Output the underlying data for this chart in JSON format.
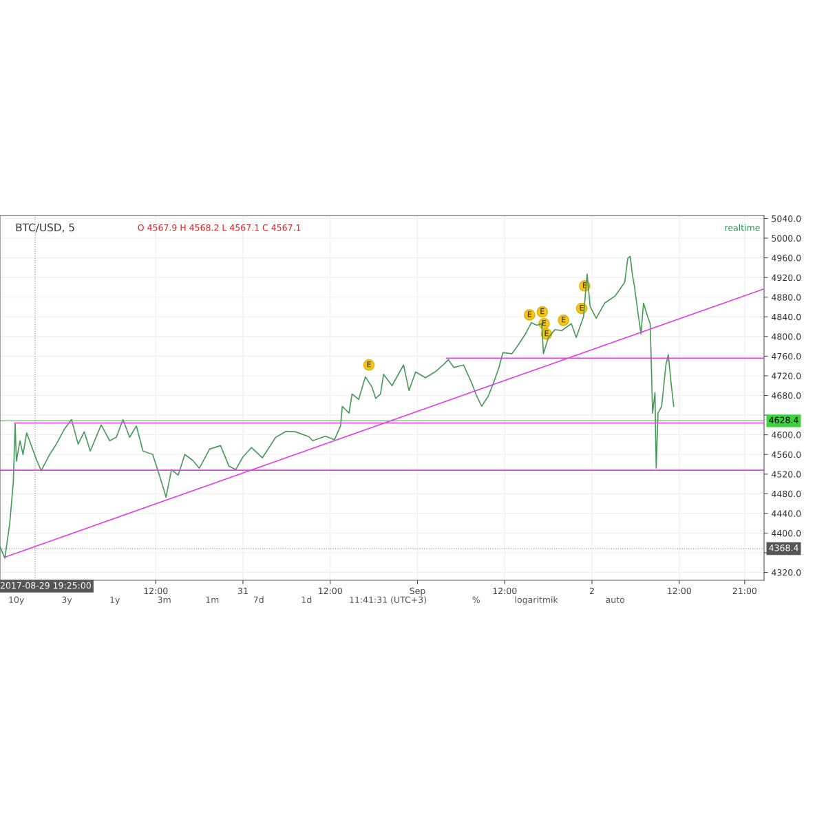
{
  "chart_data": {
    "type": "line",
    "title": "BTC/USD, 5",
    "subtitle": "O 4567.9 H 4568.2 L 4567.1 C 4567.1",
    "xlim": [
      "2017-08-29T14:35",
      "2017-09-02T23:40"
    ],
    "xticks": [
      {
        "value": "2017-08-30T12:00",
        "label": "12:00"
      },
      {
        "value": "2017-08-31",
        "label": "31"
      },
      {
        "value": "2017-08-31T12:00",
        "label": "12:00"
      },
      {
        "value": "2017-09-01",
        "label": "Sep"
      },
      {
        "value": "2017-09-01T12:00",
        "label": "12:00"
      },
      {
        "value": "2017-09-02",
        "label": "2"
      },
      {
        "value": "2017-09-02T12:00",
        "label": "12:00"
      },
      {
        "value": "2017-09-02T21:00",
        "label": "21:00"
      }
    ],
    "ylim": [
      4304,
      5046
    ],
    "yticks": [
      {
        "value": 4320,
        "label": "4320.0"
      },
      {
        "value": 4360,
        "label": null
      },
      {
        "value": 4400,
        "label": "4400.0"
      },
      {
        "value": 4440,
        "label": "4440.0"
      },
      {
        "value": 4480,
        "label": "4480.0"
      },
      {
        "value": 4520,
        "label": "4520.0"
      },
      {
        "value": 4560,
        "label": "4560.0"
      },
      {
        "value": 4600,
        "label": "4600.0"
      },
      {
        "value": 4640,
        "label": null
      },
      {
        "value": 4680,
        "label": "4680.0"
      },
      {
        "value": 4720,
        "label": "4720.0"
      },
      {
        "value": 4760,
        "label": "4760.0"
      },
      {
        "value": 4800,
        "label": "4800.0"
      },
      {
        "value": 4840,
        "label": "4840.0"
      },
      {
        "value": 4880,
        "label": "4880.0"
      },
      {
        "value": 4920,
        "label": "4920.0"
      },
      {
        "value": 4960,
        "label": "4960.0"
      },
      {
        "value": 5000,
        "label": "5000.0"
      },
      {
        "value": 5040,
        "label": "5040.0"
      }
    ],
    "grid": true,
    "line_style": "solid",
    "marker": "none",
    "series": [
      {
        "color": "#4a9a5a",
        "x": [
          "2017-08-29T14:35",
          "2017-08-29T15:15",
          "2017-08-29T15:55",
          "2017-08-29T16:25",
          "2017-08-29T16:40",
          "2017-08-29T16:50",
          "2017-08-29T17:20",
          "2017-08-29T17:45",
          "2017-08-29T18:15",
          "2017-08-29T19:35",
          "2017-08-29T20:15",
          "2017-08-29T21:25",
          "2017-08-29T22:20",
          "2017-08-29T23:25",
          "2017-08-30T00:25",
          "2017-08-30T01:20",
          "2017-08-30T02:10",
          "2017-08-30T03:00",
          "2017-08-30T04:30",
          "2017-08-30T05:40",
          "2017-08-30T06:35",
          "2017-08-30T07:30",
          "2017-08-30T08:25",
          "2017-08-30T09:20",
          "2017-08-30T10:15",
          "2017-08-30T11:35",
          "2017-08-30T12:30",
          "2017-08-30T13:15",
          "2017-08-30T13:25",
          "2017-08-30T14:10",
          "2017-08-30T15:05",
          "2017-08-30T16:00",
          "2017-08-30T17:05",
          "2017-08-30T18:00",
          "2017-08-30T19:25",
          "2017-08-30T20:55",
          "2017-08-30T22:05",
          "2017-08-30T23:00",
          "2017-08-31T00:00",
          "2017-08-31T01:10",
          "2017-08-31T02:40",
          "2017-08-31T04:30",
          "2017-08-31T05:55",
          "2017-08-31T07:15",
          "2017-08-31T09:05",
          "2017-08-31T09:35",
          "2017-08-31T11:20",
          "2017-08-31T12:35",
          "2017-08-31T13:25",
          "2017-08-31T13:40",
          "2017-08-31T14:35",
          "2017-08-31T15:00",
          "2017-08-31T15:55",
          "2017-08-31T16:50",
          "2017-08-31T17:45",
          "2017-08-31T18:15",
          "2017-08-31T18:55",
          "2017-08-31T19:20",
          "2017-08-31T20:30",
          "2017-08-31T22:05",
          "2017-08-31T22:50",
          "2017-08-31T23:45",
          "2017-09-01T01:05",
          "2017-09-01T02:25",
          "2017-09-01T03:40",
          "2017-09-01T04:15",
          "2017-09-01T05:00",
          "2017-09-01T06:20",
          "2017-09-01T07:30",
          "2017-09-01T08:05",
          "2017-09-01T08:50",
          "2017-09-01T09:45",
          "2017-09-01T10:25",
          "2017-09-01T11:10",
          "2017-09-01T11:45",
          "2017-09-01T13:00",
          "2017-09-01T13:55",
          "2017-09-01T14:50",
          "2017-09-01T15:40",
          "2017-09-01T16:25",
          "2017-09-01T17:05",
          "2017-09-01T17:20",
          "2017-09-01T18:00",
          "2017-09-01T18:55",
          "2017-09-01T19:50",
          "2017-09-01T21:10",
          "2017-09-01T21:50",
          "2017-09-01T22:50",
          "2017-09-01T23:20",
          "2017-09-01T23:45",
          "2017-09-02T00:35",
          "2017-09-02T01:45",
          "2017-09-02T03:10",
          "2017-09-02T04:30",
          "2017-09-02T04:55",
          "2017-09-02T05:15",
          "2017-09-02T05:35",
          "2017-09-02T05:50",
          "2017-09-02T06:20",
          "2017-09-02T06:45",
          "2017-09-02T07:05",
          "2017-09-02T07:40",
          "2017-09-02T08:00",
          "2017-09-02T08:10",
          "2017-09-02T08:20",
          "2017-09-02T08:40",
          "2017-09-02T08:50",
          "2017-09-02T09:05",
          "2017-09-02T09:35",
          "2017-09-02T10:10",
          "2017-09-02T10:30",
          "2017-09-02T10:55",
          "2017-09-02T11:15"
        ],
        "values": [
          4373,
          4349,
          4419,
          4504,
          4623,
          4546,
          4588,
          4560,
          4604,
          4550,
          4527,
          4560,
          4581,
          4611,
          4631,
          4581,
          4606,
          4567,
          4620,
          4588,
          4595,
          4631,
          4595,
          4618,
          4567,
          4560,
          4518,
          4482,
          4473,
          4529,
          4518,
          4560,
          4548,
          4532,
          4571,
          4578,
          4536,
          4529,
          4555,
          4574,
          4553,
          4595,
          4607,
          4606,
          4596,
          4588,
          4597,
          4590,
          4618,
          4658,
          4644,
          4683,
          4672,
          4718,
          4697,
          4674,
          4683,
          4723,
          4700,
          4742,
          4690,
          4728,
          4716,
          4728,
          4744,
          4753,
          4737,
          4742,
          4704,
          4681,
          4658,
          4679,
          4704,
          4735,
          4767,
          4765,
          4784,
          4805,
          4828,
          4823,
          4826,
          4765,
          4798,
          4814,
          4812,
          4826,
          4798,
          4840,
          4927,
          4861,
          4837,
          4868,
          4882,
          4910,
          4959,
          4963,
          4924,
          4903,
          4847,
          4805,
          4868,
          4840,
          4826,
          4742,
          4644,
          4686,
          4532,
          4644,
          4658,
          4742,
          4763,
          4700,
          4658
        ]
      },
      {
        "color": "#e23ee6",
        "x": [
          "2017-08-29T16:35",
          "2017-09-02T23:40"
        ],
        "values": [
          4624,
          4624
        ]
      },
      {
        "color": "#e23ee6",
        "x": [
          "2017-08-29T14:35",
          "2017-09-02T23:40"
        ],
        "values": [
          4528,
          4528
        ]
      },
      {
        "color": "#e23ee6",
        "x": [
          "2017-09-01T04:00",
          "2017-09-02T23:40"
        ],
        "values": [
          4756,
          4756
        ]
      },
      {
        "color": "#e23ee6",
        "x": [
          "2017-08-29T15:15",
          "2017-09-02T23:30"
        ],
        "values": [
          4351,
          4896
        ]
      }
    ],
    "ref_lines": [
      {
        "axis": "y",
        "value": 4628.4,
        "label": "4628.4",
        "color": "#3cd43c",
        "line_style": "solid"
      },
      {
        "axis": "y",
        "value": 4368.4,
        "label": "4368.4",
        "color": "#999999",
        "line_style": "dotted"
      },
      {
        "axis": "x",
        "value": "2017-08-29T19:25",
        "label": "2017-08-29 19:25:00",
        "color": "#999999",
        "line_style": "dotted"
      }
    ],
    "annotations": [
      "realtime",
      "10y",
      "3y",
      "1y",
      "3m",
      "1m",
      "7d",
      "1d",
      "11:41:31 (UTC+3)",
      "%",
      "logaritmik",
      "auto",
      {
        "text": "E",
        "x": "2017-08-31T17:20",
        "y": 4742
      },
      {
        "text": "E",
        "x": "2017-09-01T15:25",
        "y": 4844
      },
      {
        "text": "E",
        "x": "2017-09-01T17:10",
        "y": 4850
      },
      {
        "text": "E",
        "x": "2017-09-01T17:25",
        "y": 4826
      },
      {
        "text": "E",
        "x": "2017-09-01T17:45",
        "y": 4805
      },
      {
        "text": "E",
        "x": "2017-09-01T20:05",
        "y": 4833
      },
      {
        "text": "E",
        "x": "2017-09-01T22:35",
        "y": 4857
      },
      {
        "text": "E",
        "x": "2017-09-01T23:00",
        "y": 4903
      }
    ]
  }
}
